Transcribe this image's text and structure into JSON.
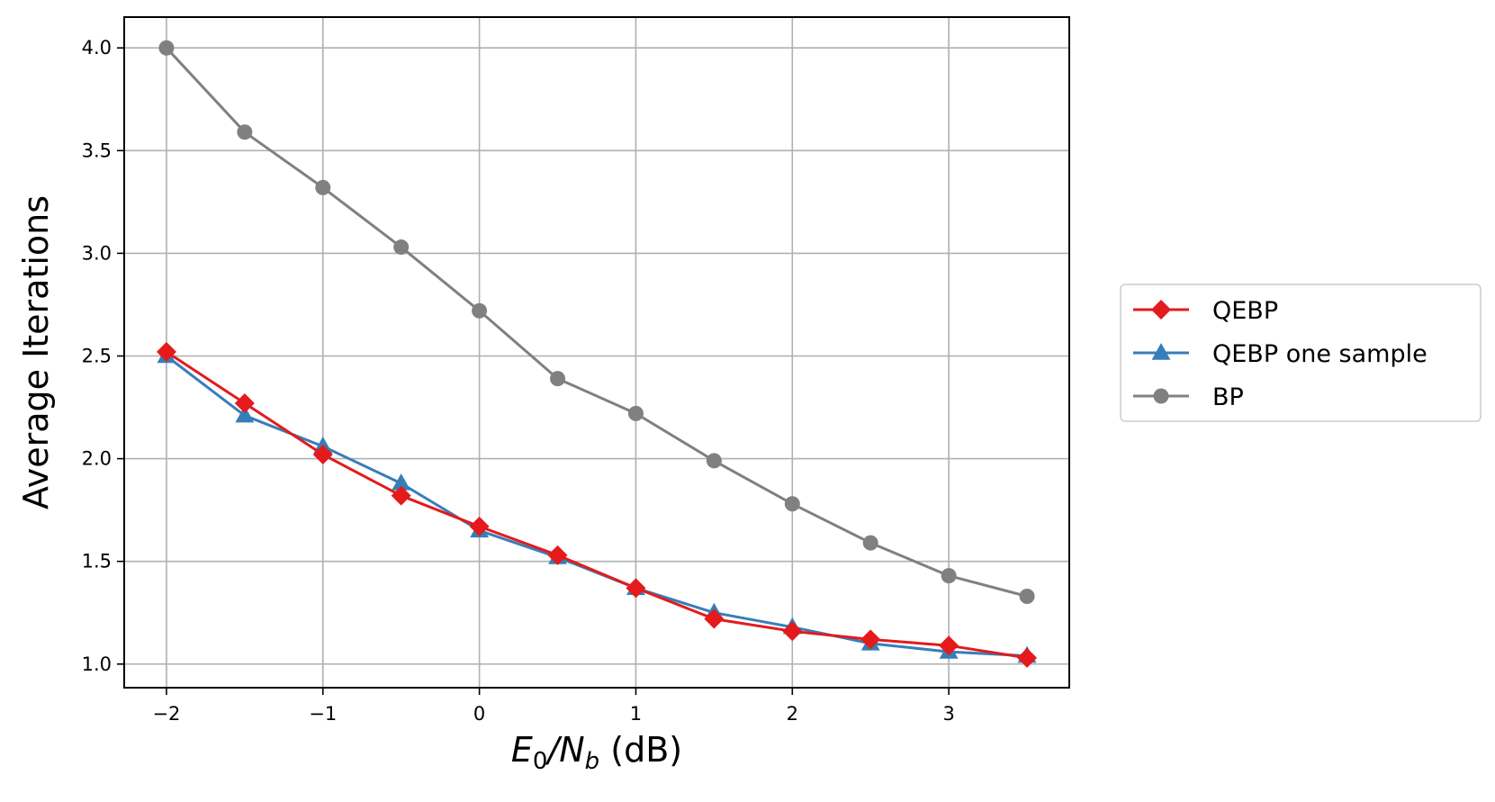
{
  "chart_data": {
    "type": "line",
    "title": "",
    "xlabel": {
      "base": "E",
      "sub1": "0",
      "slash": "/N",
      "sub2": "b",
      "unit": " (dB)"
    },
    "ylabel": "Average Iterations",
    "xlim": [
      -2.27,
      3.77
    ],
    "ylim": [
      0.885,
      4.15
    ],
    "x_ticks": [
      -2,
      -1,
      0,
      1,
      2,
      3
    ],
    "x_tick_labels": [
      "−2",
      "−1",
      "0",
      "1",
      "2",
      "3"
    ],
    "y_ticks": [
      1.0,
      1.5,
      2.0,
      2.5,
      3.0,
      3.5,
      4.0
    ],
    "y_tick_labels": [
      "1.0",
      "1.5",
      "2.0",
      "2.5",
      "3.0",
      "3.5",
      "4.0"
    ],
    "grid": true,
    "legend": {
      "placement": "outside-right"
    },
    "x": [
      -2,
      -1.5,
      -1,
      -0.5,
      0,
      0.5,
      1,
      1.5,
      2,
      2.5,
      3,
      3.5
    ],
    "series": [
      {
        "name": "QEBP",
        "color": "#e41a1c",
        "marker": "diamond",
        "values": [
          2.52,
          2.27,
          2.02,
          1.82,
          1.67,
          1.53,
          1.37,
          1.22,
          1.16,
          1.12,
          1.09,
          1.03
        ]
      },
      {
        "name": "QEBP one sample",
        "color": "#377eb8",
        "marker": "triangle",
        "values": [
          2.5,
          2.21,
          2.06,
          1.88,
          1.65,
          1.52,
          1.37,
          1.25,
          1.18,
          1.1,
          1.06,
          1.04
        ]
      },
      {
        "name": "BP",
        "color": "#808080",
        "marker": "circle",
        "values": [
          4.0,
          3.59,
          3.32,
          3.03,
          2.72,
          2.39,
          2.22,
          1.99,
          1.78,
          1.59,
          1.43,
          1.33
        ]
      }
    ]
  }
}
